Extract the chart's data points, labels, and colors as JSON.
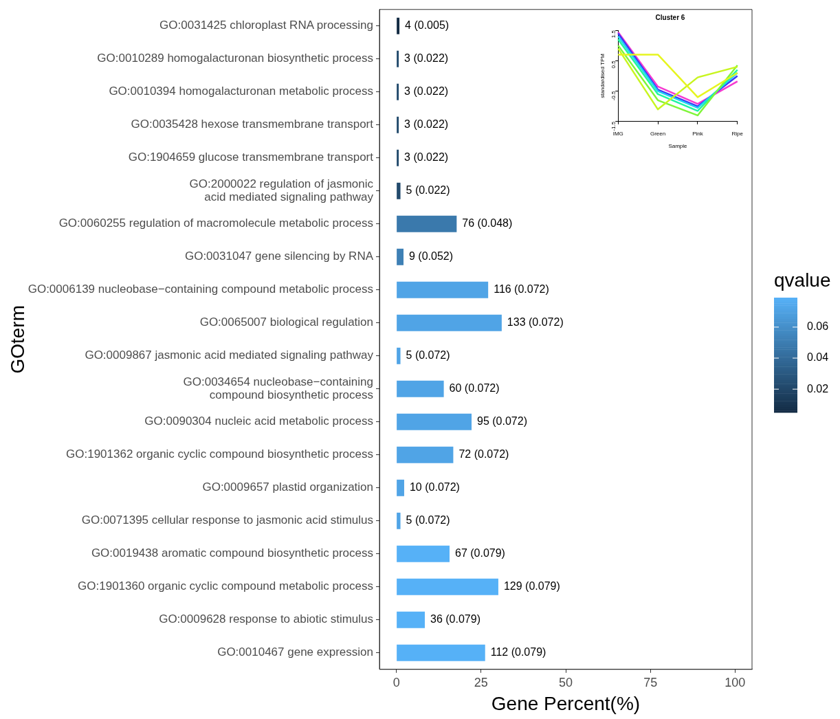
{
  "chart_data": [
    {
      "type": "bar",
      "orientation": "horizontal",
      "xlabel": "Gene Percent(%)",
      "ylabel": "GOterm",
      "clabel": "qvalue",
      "categories": [
        "GO:0031425 chloroplast RNA processing",
        "GO:0010289 homogalacturonan biosynthetic process",
        "GO:0010394 homogalacturonan metabolic process",
        "GO:0035428 hexose transmembrane transport",
        "GO:1904659 glucose transmembrane transport",
        "GO:2000022 regulation of jasmonic\nacid mediated signaling pathway",
        "GO:0060255 regulation of macromolecule metabolic process",
        "GO:0031047 gene silencing by RNA",
        "GO:0006139 nucleobase−containing compound metabolic process",
        "GO:0065007 biological regulation",
        "GO:0009867 jasmonic acid mediated signaling pathway",
        "GO:0034654 nucleobase−containing\ncompound biosynthetic process",
        "GO:0090304 nucleic acid metabolic process",
        "GO:1901362 organic cyclic compound biosynthetic process",
        "GO:0009657 plastid organization",
        "GO:0071395 cellular response to jasmonic acid stimulus",
        "GO:0019438 aromatic compound biosynthetic process",
        "GO:1901360 organic cyclic compound metabolic process",
        "GO:0009628 response to abiotic stimulus",
        "GO:0010467 gene expression"
      ],
      "values": [
        0.9,
        0.7,
        0.7,
        0.7,
        0.7,
        1.2,
        17.8,
        2.1,
        27.1,
        31.1,
        1.2,
        14.0,
        22.2,
        16.8,
        2.3,
        1.2,
        15.7,
        30.1,
        8.4,
        26.2
      ],
      "cvalues": [
        0.005,
        0.022,
        0.022,
        0.022,
        0.022,
        0.022,
        0.048,
        0.052,
        0.072,
        0.072,
        0.072,
        0.072,
        0.072,
        0.072,
        0.072,
        0.072,
        0.079,
        0.079,
        0.079,
        0.079
      ],
      "annotations": [
        {
          "text": "4 (0.005)",
          "x": 0.9,
          "y": "GO:0031425 chloroplast RNA processing"
        },
        {
          "text": "3 (0.022)",
          "x": 0.7,
          "y": "GO:0010289 homogalacturonan biosynthetic process"
        },
        {
          "text": "3 (0.022)",
          "x": 0.7,
          "y": "GO:0010394 homogalacturonan metabolic process"
        },
        {
          "text": "3 (0.022)",
          "x": 0.7,
          "y": "GO:0035428 hexose transmembrane transport"
        },
        {
          "text": "3 (0.022)",
          "x": 0.7,
          "y": "GO:1904659 glucose transmembrane transport"
        },
        {
          "text": "5 (0.022)",
          "x": 1.2,
          "y": "GO:2000022 regulation of jasmonic\nacid mediated signaling pathway"
        },
        {
          "text": "76 (0.048)",
          "x": 17.8,
          "y": "GO:0060255 regulation of macromolecule metabolic process"
        },
        {
          "text": "9 (0.052)",
          "x": 2.1,
          "y": "GO:0031047 gene silencing by RNA"
        },
        {
          "text": "116 (0.072)",
          "x": 27.1,
          "y": "GO:0006139 nucleobase−containing compound metabolic process"
        },
        {
          "text": "133 (0.072)",
          "x": 31.1,
          "y": "GO:0065007 biological regulation"
        },
        {
          "text": "5 (0.072)",
          "x": 1.2,
          "y": "GO:0009867 jasmonic acid mediated signaling pathway"
        },
        {
          "text": "60 (0.072)",
          "x": 14.0,
          "y": "GO:0034654 nucleobase−containing\ncompound biosynthetic process"
        },
        {
          "text": "95 (0.072)",
          "x": 22.2,
          "y": "GO:0090304 nucleic acid metabolic process"
        },
        {
          "text": "72 (0.072)",
          "x": 16.8,
          "y": "GO:1901362 organic cyclic compound biosynthetic process"
        },
        {
          "text": "10 (0.072)",
          "x": 2.3,
          "y": "GO:0009657 plastid organization"
        },
        {
          "text": "5 (0.072)",
          "x": 1.2,
          "y": "GO:0071395 cellular response to jasmonic acid stimulus"
        },
        {
          "text": "67 (0.079)",
          "x": 15.7,
          "y": "GO:0019438 aromatic compound biosynthetic process"
        },
        {
          "text": "129 (0.079)",
          "x": 30.1,
          "y": "GO:1901360 organic cyclic compound metabolic process"
        },
        {
          "text": "36 (0.079)",
          "x": 8.4,
          "y": "GO:0009628 response to abiotic stimulus"
        },
        {
          "text": "112 (0.079)",
          "x": 26.2,
          "y": "GO:0010467 gene expression"
        }
      ],
      "clim": [
        0.005,
        0.079
      ],
      "cticks": [
        0.02,
        0.04,
        0.06
      ],
      "xlim": [
        -5,
        105
      ],
      "xticks": [
        0,
        25,
        50,
        75,
        100
      ],
      "grid": false,
      "legend": false
    },
    {
      "type": "line",
      "title": "Cluster 6",
      "xlabel": "Sample",
      "ylabel": "standardised TPM",
      "categories": [
        "IMG",
        "Green",
        "Pink",
        "Ripe"
      ],
      "series": [
        {
          "color": "#e6f51f",
          "values": [
            0.7,
            0.7,
            -0.7,
            0.1
          ]
        },
        {
          "color": "#c8f51f",
          "values": [
            0.9,
            -1.1,
            -0.05,
            0.3
          ]
        },
        {
          "color": "#7ff53a",
          "values": [
            1.0,
            -0.8,
            -1.3,
            0.35
          ]
        },
        {
          "color": "#1ff5a0",
          "values": [
            1.2,
            -0.6,
            -1.15,
            0.2
          ]
        },
        {
          "color": "#1fd0f5",
          "values": [
            1.3,
            -0.5,
            -1.05,
            0.1
          ]
        },
        {
          "color": "#3a3af5",
          "values": [
            1.4,
            -0.45,
            -1.0,
            0.0
          ]
        },
        {
          "color": "#f53ad0",
          "values": [
            1.44,
            -0.35,
            -0.92,
            -0.18
          ]
        }
      ],
      "ylim": [
        -1.5,
        1.5
      ],
      "yticks": [
        -1.5,
        -0.5,
        0.5,
        1.5
      ],
      "grid": false
    }
  ]
}
